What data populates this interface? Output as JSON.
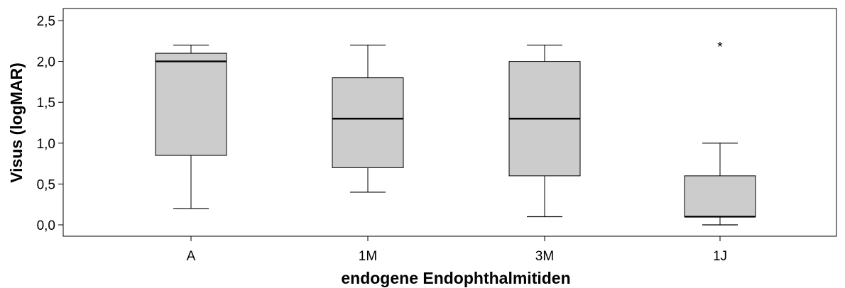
{
  "chart_data": {
    "type": "box",
    "title": "",
    "xlabel": "endogene Endophthalmitiden",
    "ylabel": "Visus (logMAR)",
    "ylim": [
      -0.15,
      2.65
    ],
    "yticks": [
      "0,0",
      "0,5",
      "1,0",
      "1,5",
      "2,0",
      "2,5"
    ],
    "ytick_values": [
      0,
      0.5,
      1.0,
      1.5,
      2.0,
      2.5
    ],
    "grid": false,
    "categories": [
      "A",
      "1M",
      "3M",
      "1J"
    ],
    "boxes": [
      {
        "category": "A",
        "whisker_low": 0.2,
        "q1": 0.85,
        "median": 2.0,
        "q3": 2.1,
        "whisker_high": 2.2,
        "outliers": []
      },
      {
        "category": "1M",
        "whisker_low": 0.4,
        "q1": 0.7,
        "median": 1.3,
        "q3": 1.8,
        "whisker_high": 2.2,
        "outliers": []
      },
      {
        "category": "3M",
        "whisker_low": 0.1,
        "q1": 0.6,
        "median": 1.3,
        "q3": 2.0,
        "whisker_high": 2.2,
        "outliers": []
      },
      {
        "category": "1J",
        "whisker_low": 0.0,
        "q1": 0.1,
        "median": 0.1,
        "q3": 0.6,
        "whisker_high": 1.0,
        "outliers": [
          2.2
        ]
      }
    ],
    "outlier_marker": "*",
    "box_fill": "#cccccc",
    "line_color": "#000000"
  }
}
